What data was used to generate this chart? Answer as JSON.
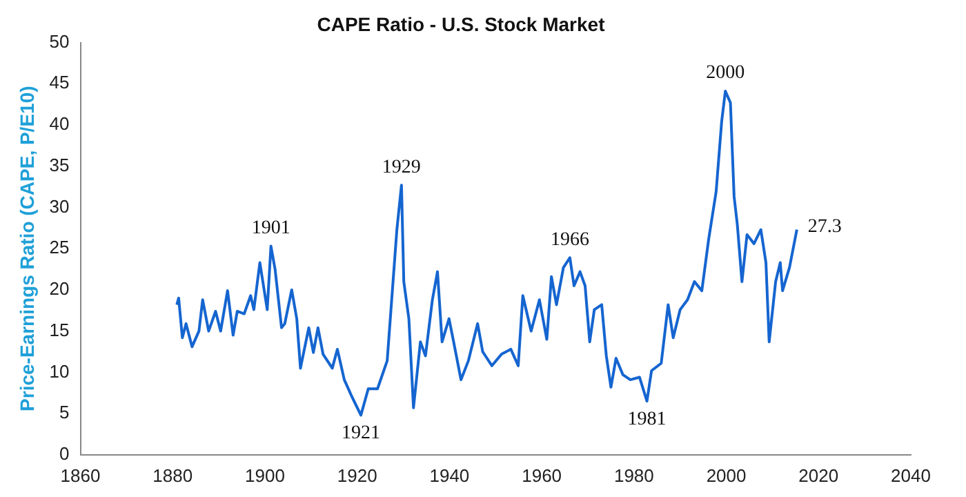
{
  "chart_data": {
    "type": "line",
    "title": "CAPE Ratio - U.S. Stock Market",
    "ylabel": "Price-Earnings Ratio (CAPE, P/E10)",
    "xlim": [
      1860,
      2040
    ],
    "xticks": [
      1860,
      1880,
      1900,
      1920,
      1940,
      1960,
      1980,
      2000,
      2020,
      2040
    ],
    "ylim": [
      0,
      50
    ],
    "yticks": [
      0,
      5,
      10,
      15,
      20,
      25,
      30,
      35,
      40,
      45,
      50
    ],
    "grid": false,
    "legend": false,
    "marker": "none",
    "line_style": "solid",
    "series": [
      {
        "color": "#1565d0",
        "x": [
          1880.9,
          1881.3,
          1882.1,
          1882.9,
          1884.2,
          1885.7,
          1886.5,
          1887.8,
          1889.3,
          1890.4,
          1891.9,
          1893.1,
          1894,
          1895.5,
          1896.9,
          1897.6,
          1898.9,
          1900.5,
          1901.3,
          1902.2,
          1903.6,
          1904.3,
          1905.8,
          1906.9,
          1907.7,
          1909.5,
          1910.5,
          1911.5,
          1912.6,
          1914.6,
          1915.7,
          1917.2,
          1918.8,
          1920.8,
          1922.4,
          1924.4,
          1926.5,
          1928.6,
          1929.6,
          1930.1,
          1931.2,
          1932.2,
          1933.7,
          1934.8,
          1936.3,
          1937.4,
          1938.4,
          1939.9,
          1940.9,
          1942.5,
          1944.1,
          1946.1,
          1947.2,
          1949.2,
          1951.3,
          1953.3,
          1954.9,
          1955.9,
          1957.7,
          1959.5,
          1961.1,
          1962.1,
          1963.2,
          1964.7,
          1966.1,
          1967,
          1968.3,
          1969.4,
          1970.4,
          1971.4,
          1973,
          1974,
          1975,
          1976.1,
          1977.6,
          1979.2,
          1981.2,
          1982.8,
          1983.8,
          1985.9,
          1987.4,
          1988.5,
          1990,
          1991.6,
          1993.1,
          1994.7,
          1996.2,
          1997.8,
          1999,
          1999.8,
          2000.9,
          2001.7,
          2002.4,
          2003.4,
          2004.5,
          2006,
          2007.5,
          2008.6,
          2009.3,
          2010.7,
          2011.7,
          2012.2,
          2013.7,
          2015.3
        ],
        "values": [
          18.2,
          19.0,
          14.2,
          15.9,
          13.1,
          15.0,
          18.8,
          15.0,
          17.4,
          15.0,
          19.9,
          14.5,
          17.4,
          17.1,
          19.3,
          17.6,
          23.3,
          17.6,
          25.3,
          22.5,
          15.4,
          15.9,
          20.0,
          16.5,
          10.5,
          15.4,
          12.4,
          15.4,
          12.2,
          10.5,
          12.8,
          9.1,
          7.1,
          4.8,
          8.0,
          8.0,
          11.4,
          27.3,
          32.7,
          21.0,
          16.5,
          5.7,
          13.7,
          12.0,
          18.8,
          22.2,
          13.7,
          16.5,
          13.7,
          9.1,
          11.4,
          15.9,
          12.5,
          10.8,
          12.2,
          12.8,
          10.8,
          19.3,
          15.0,
          18.8,
          14.0,
          21.6,
          18.2,
          22.7,
          23.9,
          20.5,
          22.2,
          20.5,
          13.7,
          17.6,
          18.2,
          12.0,
          8.2,
          11.7,
          9.7,
          9.1,
          9.4,
          6.5,
          10.2,
          11.1,
          18.2,
          14.2,
          17.6,
          18.8,
          21.0,
          19.9,
          26.2,
          31.9,
          40.4,
          44.1,
          42.7,
          31.3,
          27.9,
          21.0,
          26.7,
          25.6,
          27.3,
          23.3,
          13.7,
          21.0,
          23.3,
          19.9,
          22.7,
          27.3
        ]
      }
    ],
    "annotations": [
      {
        "text": "1901",
        "x": 1901.3,
        "y": 25.3
      },
      {
        "text": "1929",
        "x": 1929.6,
        "y": 32.7
      },
      {
        "text": "1921",
        "x": 1920.8,
        "y": 4.8
      },
      {
        "text": "1966",
        "x": 1966.1,
        "y": 23.9
      },
      {
        "text": "1981",
        "x": 1982.8,
        "y": 6.5
      },
      {
        "text": "2000",
        "x": 1999.8,
        "y": 44.1
      },
      {
        "text": "27.3",
        "x": 2015.3,
        "y": 27.3
      }
    ]
  }
}
